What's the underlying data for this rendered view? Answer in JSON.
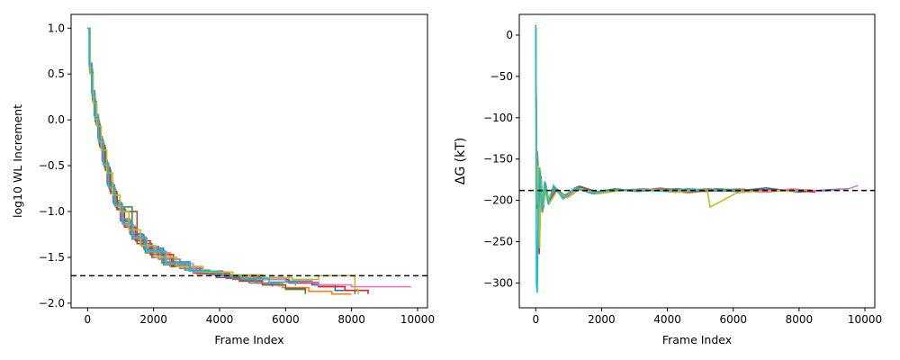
{
  "chart_data": [
    {
      "type": "line",
      "xlabel": "Frame Index",
      "ylabel": "log10 WL Increment",
      "xlim": [
        -500,
        10300
      ],
      "ylim": [
        -2.05,
        1.15
      ],
      "xticks": [
        0,
        2000,
        4000,
        6000,
        8000,
        10000
      ],
      "xtick_labels": [
        "0",
        "2000",
        "4000",
        "6000",
        "8000",
        "10000"
      ],
      "yticks": [
        1.0,
        0.5,
        0.0,
        -0.5,
        -1.0,
        -1.5,
        -2.0
      ],
      "ytick_labels": [
        "1.0",
        "0.5",
        "0.0",
        "−0.5",
        "−1.0",
        "−1.5",
        "−2.0"
      ],
      "reference_line": {
        "y": -1.7,
        "style": "dashed",
        "color": "#000000"
      },
      "grid": false,
      "series": [
        {
          "color": "#1f77b4",
          "x": [
            0,
            50,
            120,
            200,
            320,
            450,
            600,
            780,
            1000,
            1300,
            1700,
            2300,
            3100,
            4100,
            5000,
            6000,
            6800,
            7500,
            8100
          ],
          "y": [
            1.0,
            0.6,
            0.3,
            0.05,
            -0.2,
            -0.45,
            -0.7,
            -0.9,
            -1.1,
            -1.25,
            -1.4,
            -1.55,
            -1.65,
            -1.7,
            -1.72,
            -1.76,
            -1.8,
            -1.86,
            -1.9
          ]
        },
        {
          "color": "#ff7f0e",
          "x": [
            0,
            60,
            140,
            230,
            350,
            500,
            650,
            850,
            1100,
            1400,
            1800,
            2500,
            3300,
            4200,
            5100,
            5900,
            6700,
            7400,
            8000
          ],
          "y": [
            1.0,
            0.55,
            0.25,
            0.0,
            -0.25,
            -0.5,
            -0.75,
            -0.95,
            -1.15,
            -1.3,
            -1.45,
            -1.6,
            -1.68,
            -1.72,
            -1.78,
            -1.83,
            -1.87,
            -1.9,
            -1.9
          ]
        },
        {
          "color": "#2ca02c",
          "x": [
            0,
            55,
            130,
            220,
            330,
            470,
            620,
            800,
            1050,
            1350,
            1750,
            2300,
            3100,
            3900,
            4600,
            5300,
            6000,
            6600
          ],
          "y": [
            1.0,
            0.6,
            0.3,
            0.03,
            -0.22,
            -0.48,
            -0.72,
            -0.92,
            -0.95,
            -1.3,
            -1.45,
            -1.58,
            -1.65,
            -1.7,
            -1.75,
            -1.8,
            -1.85,
            -1.9
          ]
        },
        {
          "color": "#d62728",
          "x": [
            0,
            65,
            150,
            240,
            360,
            520,
            680,
            880,
            1120,
            1450,
            1900,
            2600,
            3400,
            4300,
            5200,
            6100,
            7000,
            7800,
            8500
          ],
          "y": [
            1.0,
            0.55,
            0.22,
            -0.02,
            -0.28,
            -0.52,
            -0.78,
            -0.97,
            -1.17,
            -1.32,
            -1.47,
            -1.6,
            -1.67,
            -1.7,
            -1.74,
            -1.78,
            -1.82,
            -1.86,
            -1.9
          ]
        },
        {
          "color": "#9467bd",
          "x": [
            0,
            50,
            125,
            210,
            310,
            440,
            590,
            770,
            990,
            1280,
            1650,
            2150,
            2800,
            3500,
            4200,
            4900,
            5600
          ],
          "y": [
            1.0,
            0.62,
            0.32,
            0.06,
            -0.18,
            -0.44,
            -0.68,
            -0.88,
            -1.08,
            -1.24,
            -1.38,
            -1.52,
            -1.62,
            -1.68,
            -1.73,
            -1.78,
            -1.82
          ]
        },
        {
          "color": "#8c564b",
          "x": [
            0,
            70,
            160,
            260,
            380,
            540,
            700,
            900,
            1150,
            1500,
            1950,
            2550,
            3200,
            3900,
            4600,
            5300,
            6000,
            6600
          ],
          "y": [
            1.0,
            0.52,
            0.2,
            -0.05,
            -0.3,
            -0.55,
            -0.8,
            -0.98,
            -1.0,
            -1.35,
            -1.5,
            -1.6,
            -1.67,
            -1.72,
            -1.76,
            -1.8,
            -1.84,
            -1.88
          ]
        },
        {
          "color": "#e377c2",
          "x": [
            0,
            60,
            140,
            230,
            340,
            480,
            640,
            830,
            1070,
            1380,
            1800,
            2400,
            3200,
            4100,
            5000,
            6000,
            7000,
            8000,
            9000,
            9800
          ],
          "y": [
            1.0,
            0.57,
            0.26,
            0.01,
            -0.24,
            -0.49,
            -0.74,
            -0.94,
            -1.14,
            -1.29,
            -1.44,
            -1.57,
            -1.66,
            -1.7,
            -1.74,
            -1.77,
            -1.8,
            -1.82,
            -1.82,
            -1.82
          ]
        },
        {
          "color": "#7f7f7f",
          "x": [
            0,
            55,
            135,
            225,
            335,
            475,
            630,
            815,
            1040,
            1340,
            1720,
            2250,
            2950,
            3700,
            4400,
            5100,
            5800
          ],
          "y": [
            1.0,
            0.6,
            0.28,
            0.02,
            -0.23,
            -0.47,
            -0.71,
            -0.91,
            -1.11,
            -1.27,
            -1.42,
            -1.56,
            -1.64,
            -1.69,
            -1.74,
            -1.78,
            -1.82
          ]
        },
        {
          "color": "#bcbd22",
          "x": [
            0,
            75,
            170,
            280,
            410,
            580,
            760,
            980,
            1250,
            1600,
            2050,
            2700,
            3500,
            4400,
            5300,
            6200,
            7000,
            7400,
            8100,
            8200
          ],
          "y": [
            1.0,
            0.5,
            0.18,
            -0.07,
            -0.33,
            -0.58,
            -0.82,
            -1.0,
            -1.2,
            -1.37,
            -1.5,
            -1.6,
            -1.66,
            -1.69,
            -1.72,
            -1.74,
            -1.7,
            -1.7,
            -1.85,
            -1.9
          ]
        },
        {
          "color": "#17becf",
          "x": [
            0,
            58,
            138,
            228,
            338,
            478,
            635,
            822,
            1055,
            1360,
            1770,
            2350,
            3100,
            3900,
            4700,
            5500,
            6300
          ],
          "y": [
            1.0,
            0.58,
            0.27,
            0.02,
            -0.23,
            -0.48,
            -0.73,
            -0.93,
            -1.13,
            -1.28,
            -1.43,
            -1.56,
            -1.65,
            -1.7,
            -1.73,
            -1.77,
            -1.81
          ]
        }
      ]
    },
    {
      "type": "line",
      "xlabel": "Frame Index",
      "ylabel": "ΔG (kT)",
      "xlim": [
        -500,
        10300
      ],
      "ylim": [
        -330,
        25
      ],
      "xticks": [
        0,
        2000,
        4000,
        6000,
        8000,
        10000
      ],
      "xtick_labels": [
        "0",
        "2000",
        "4000",
        "6000",
        "8000",
        "10000"
      ],
      "yticks": [
        0,
        -50,
        -100,
        -150,
        -200,
        -250,
        -300
      ],
      "ytick_labels": [
        "0",
        "−50",
        "−100",
        "−150",
        "−200",
        "−250",
        "−300"
      ],
      "reference_line": {
        "y": -188,
        "style": "dashed",
        "color": "#000000"
      },
      "grid": false,
      "series": [
        {
          "color": "#1f77b4",
          "x": [
            0,
            30,
            60,
            100,
            150,
            220,
            300,
            400,
            600,
            900,
            1300,
            1800,
            2500,
            3300,
            4200,
            5100,
            6000,
            7000,
            8000,
            9000,
            9500
          ],
          "y": [
            10,
            -200,
            -150,
            -250,
            -170,
            -210,
            -180,
            -200,
            -185,
            -195,
            -183,
            -192,
            -188,
            -186,
            -190,
            -187,
            -189,
            -185,
            -190,
            -187,
            -186
          ]
        },
        {
          "color": "#ff7f0e",
          "x": [
            0,
            25,
            50,
            90,
            140,
            210,
            290,
            390,
            560,
            850,
            1200,
            1700,
            2300,
            3000,
            3800,
            4600,
            5400,
            6200,
            7000,
            7800,
            8500
          ],
          "y": [
            5,
            -180,
            -140,
            -260,
            -165,
            -215,
            -178,
            -205,
            -183,
            -198,
            -186,
            -191,
            -187,
            -189,
            -185,
            -191,
            -188,
            -186,
            -190,
            -187,
            -188
          ]
        },
        {
          "color": "#2ca02c",
          "x": [
            0,
            28,
            55,
            95,
            145,
            215,
            295,
            395,
            580,
            880,
            1250,
            1750,
            2400,
            3100,
            3900,
            4700,
            5500,
            6300,
            7100
          ],
          "y": [
            8,
            -190,
            -145,
            -240,
            -175,
            -205,
            -182,
            -198,
            -187,
            -194,
            -184,
            -190,
            -186,
            -189,
            -187,
            -190,
            -186,
            -188,
            -189
          ]
        },
        {
          "color": "#d62728",
          "x": [
            0,
            32,
            65,
            105,
            155,
            225,
            305,
            405,
            610,
            920,
            1320,
            1850,
            2550,
            3350,
            4250,
            5150,
            6050,
            6950,
            7850,
            8500
          ],
          "y": [
            12,
            -210,
            -155,
            -265,
            -172,
            -208,
            -181,
            -202,
            -186,
            -196,
            -184,
            -191,
            -188,
            -187,
            -190,
            -186,
            -189,
            -187,
            -188,
            -190
          ]
        },
        {
          "color": "#9467bd",
          "x": [
            0,
            26,
            52,
            92,
            142,
            212,
            292,
            392,
            570,
            860,
            1220,
            1720,
            2350,
            3050,
            3750,
            4450,
            5150,
            5700
          ],
          "y": [
            6,
            -185,
            -142,
            -245,
            -168,
            -212,
            -179,
            -203,
            -184,
            -197,
            -185,
            -192,
            -187,
            -188,
            -186,
            -190,
            -188,
            -189
          ]
        },
        {
          "color": "#8c564b",
          "x": [
            0,
            34,
            68,
            110,
            160,
            230,
            310,
            410,
            620,
            940,
            1340,
            1880,
            2580,
            3380,
            4280,
            5180,
            6000,
            6700
          ],
          "y": [
            9,
            -195,
            -152,
            -255,
            -171,
            -209,
            -183,
            -201,
            -188,
            -195,
            -183,
            -190,
            -187,
            -188,
            -186,
            -189,
            -187,
            -188
          ]
        },
        {
          "color": "#e377c2",
          "x": [
            0,
            29,
            58,
            98,
            148,
            218,
            298,
            398,
            590,
            890,
            1280,
            1790,
            2480,
            3280,
            4180,
            5080,
            5980,
            6880,
            7780,
            8680,
            9500,
            9800
          ],
          "y": [
            7,
            -188,
            -147,
            -250,
            -173,
            -207,
            -181,
            -199,
            -186,
            -196,
            -185,
            -191,
            -188,
            -186,
            -189,
            -187,
            -188,
            -190,
            -186,
            -189,
            -186,
            -182
          ]
        },
        {
          "color": "#7f7f7f",
          "x": [
            0,
            27,
            54,
            94,
            144,
            214,
            294,
            394,
            575,
            870,
            1240,
            1740,
            2420,
            3120,
            3920,
            4720,
            5500,
            6200
          ],
          "y": [
            8,
            -192,
            -148,
            -248,
            -169,
            -211,
            -180,
            -200,
            -185,
            -195,
            -184,
            -190,
            -187,
            -189,
            -186,
            -188,
            -187,
            -189
          ]
        },
        {
          "color": "#bcbd22",
          "x": [
            0,
            36,
            72,
            115,
            165,
            235,
            315,
            420,
            640,
            960,
            1360,
            1900,
            2600,
            3400,
            4300,
            5200,
            5300,
            6100,
            7000,
            7800,
            8200
          ],
          "y": [
            11,
            -205,
            -158,
            -258,
            -174,
            -206,
            -184,
            -203,
            -189,
            -197,
            -186,
            -192,
            -188,
            -187,
            -190,
            -186,
            -208,
            -191,
            -188,
            -189,
            -187
          ]
        },
        {
          "color": "#17becf",
          "x": [
            0,
            22,
            45,
            80,
            120,
            190,
            270,
            370,
            540,
            820,
            1180,
            1680,
            2320,
            3020,
            3820,
            4620,
            5420,
            6300
          ],
          "y": [
            10,
            -300,
            -312,
            -200,
            -160,
            -214,
            -177,
            -204,
            -182,
            -198,
            -185,
            -191,
            -188,
            -187,
            -189,
            -186,
            -188,
            -187
          ]
        }
      ]
    }
  ]
}
